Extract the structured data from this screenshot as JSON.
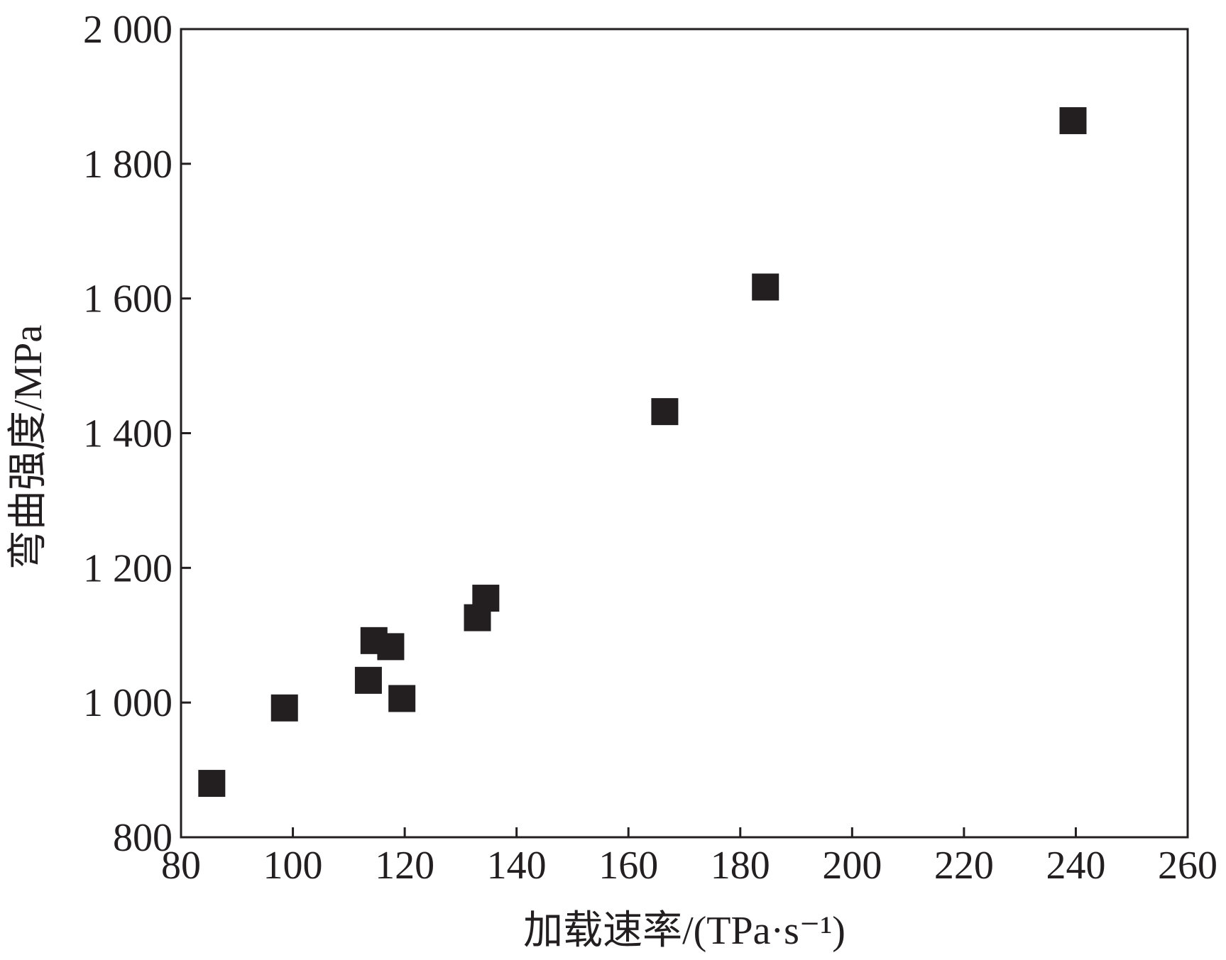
{
  "chart_data": {
    "type": "scatter",
    "xlabel": "加载速率/(TPa·s⁻¹)",
    "ylabel": "弯曲强度/MPa",
    "xlim": [
      80,
      260
    ],
    "ylim": [
      800,
      2000
    ],
    "x_ticks": [
      80,
      100,
      120,
      140,
      160,
      180,
      200,
      220,
      240,
      260
    ],
    "x_tick_labels": [
      "80",
      "100",
      "120",
      "140",
      "160",
      "180",
      "200",
      "220",
      "240",
      "260"
    ],
    "y_ticks": [
      800,
      1000,
      1200,
      1400,
      1600,
      1800,
      2000
    ],
    "y_tick_labels": [
      "800",
      "1 000",
      "1 200",
      "1 400",
      "1 600",
      "1 800",
      "2 000"
    ],
    "grid": false,
    "legend": false,
    "marker": "square",
    "marker_color": "#231f20",
    "series": [
      {
        "x": [
          85.5,
          98.5,
          113.5,
          114.5,
          117.5,
          119.5,
          133.0,
          134.5,
          166.5,
          184.5,
          239.5
        ],
        "y": [
          880,
          992,
          1033,
          1092,
          1083,
          1006,
          1126,
          1155,
          1432,
          1617,
          1864
        ]
      }
    ]
  }
}
